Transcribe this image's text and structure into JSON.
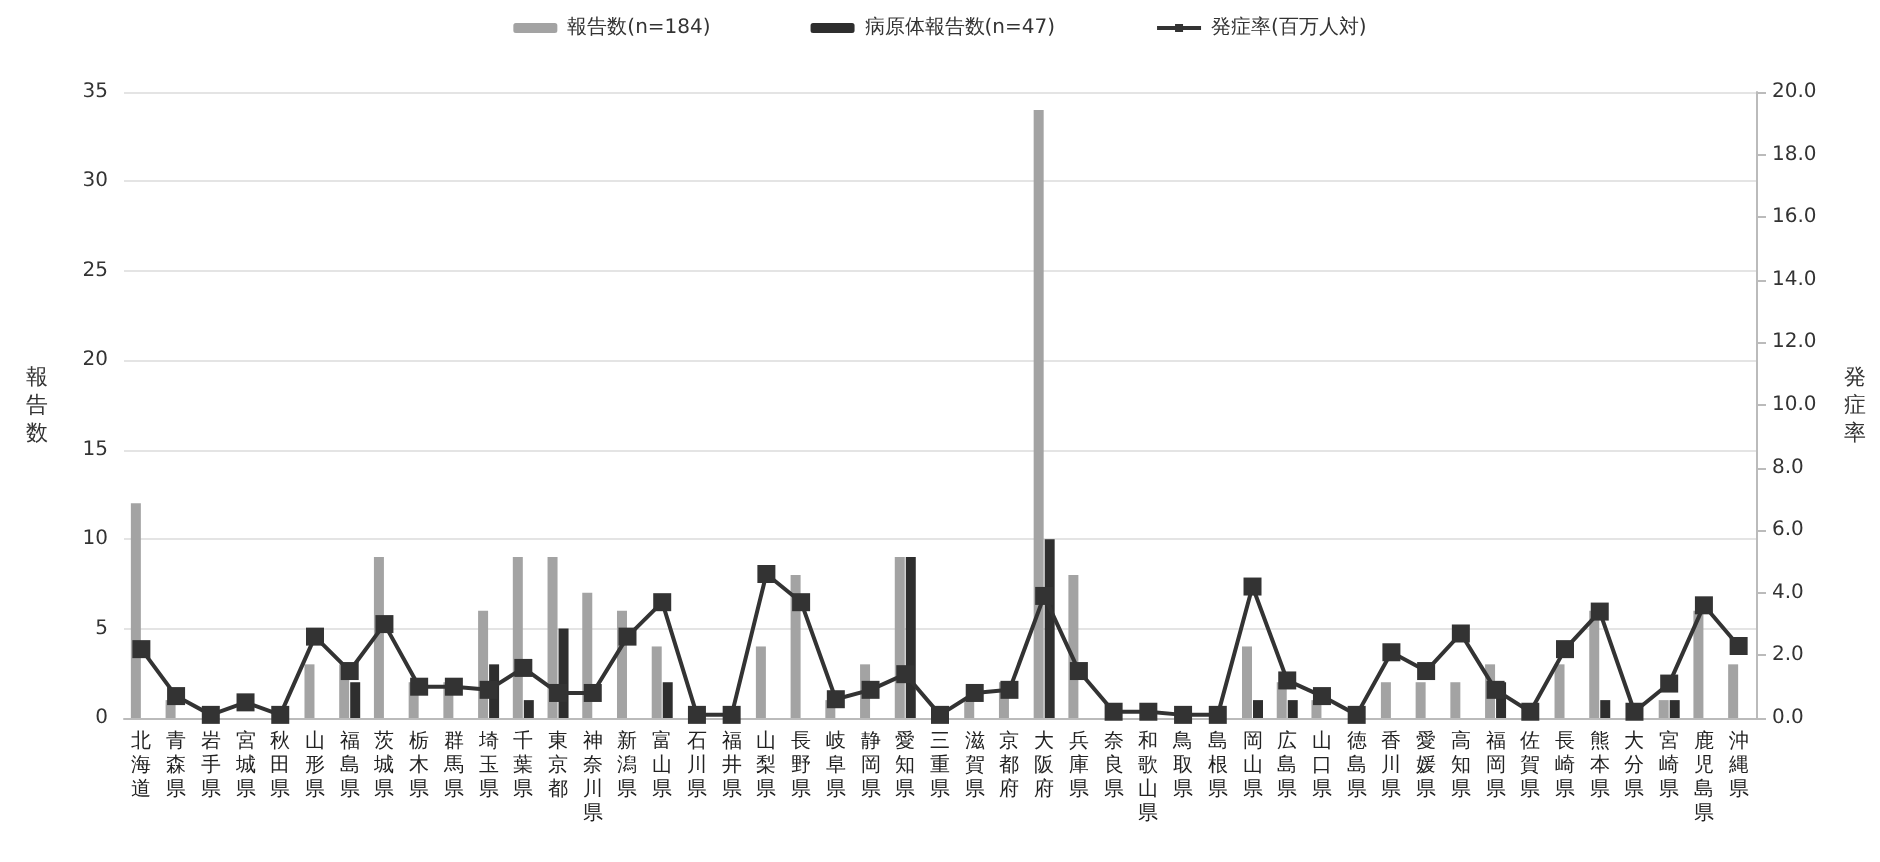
{
  "chart_data": {
    "type": "bar",
    "categories": [
      "北海道",
      "青森県",
      "岩手県",
      "宮城県",
      "秋田県",
      "山形県",
      "福島県",
      "茨城県",
      "栃木県",
      "群馬県",
      "埼玉県",
      "千葉県",
      "東京都",
      "神奈川県",
      "新潟県",
      "富山県",
      "石川県",
      "福井県",
      "山梨県",
      "長野県",
      "岐阜県",
      "静岡県",
      "愛知県",
      "三重県",
      "滋賀県",
      "京都府",
      "大阪府",
      "兵庫県",
      "奈良県",
      "和歌山県",
      "鳥取県",
      "島根県",
      "岡山県",
      "広島県",
      "山口県",
      "徳島県",
      "香川県",
      "愛媛県",
      "高知県",
      "福岡県",
      "佐賀県",
      "長崎県",
      "熊本県",
      "大分県",
      "宮崎県",
      "鹿児島県",
      "沖縄県"
    ],
    "series": [
      {
        "name": "報告数(n=184)",
        "color": "#a3a3a3",
        "values": [
          12,
          1,
          0,
          null,
          0,
          3,
          3,
          9,
          2,
          2,
          6,
          9,
          9,
          7,
          6,
          4,
          0,
          0,
          4,
          8,
          1,
          3,
          9,
          0,
          1,
          2,
          34,
          8,
          0,
          0,
          0,
          0,
          4,
          2,
          1,
          0,
          2,
          2,
          2,
          3,
          0,
          3,
          6,
          0,
          1,
          6,
          3
        ]
      },
      {
        "name": "病原体報告数(n=47)",
        "color": "#2e2e2e",
        "values": [
          0,
          0,
          0,
          0,
          0,
          0,
          2,
          0,
          0,
          0,
          3,
          1,
          5,
          0,
          0,
          2,
          0,
          0,
          0,
          0,
          0,
          0,
          9,
          0,
          0,
          0,
          10,
          0,
          0,
          0,
          0,
          0,
          1,
          1,
          0,
          0,
          0,
          0,
          0,
          2,
          0,
          0,
          1,
          0,
          1,
          0,
          0
        ]
      },
      {
        "name": "発症率(百万人対)",
        "type": "line",
        "axis": "y2",
        "color": "#333333",
        "values": [
          2.2,
          0.7,
          0.1,
          0.5,
          0.1,
          2.6,
          1.5,
          3.0,
          1.0,
          1.0,
          0.9,
          1.6,
          0.8,
          0.8,
          2.6,
          3.7,
          0.1,
          0.1,
          4.6,
          3.7,
          0.6,
          0.9,
          1.4,
          0.1,
          0.8,
          0.9,
          3.9,
          1.5,
          0.2,
          0.2,
          0.1,
          0.1,
          4.2,
          1.2,
          0.7,
          0.1,
          2.1,
          1.5,
          2.7,
          0.9,
          0.2,
          2.2,
          3.4,
          0.2,
          1.1,
          3.6,
          2.3
        ]
      }
    ],
    "ylabel": "報告数",
    "y2label": "発症率",
    "ylim": [
      0,
      35
    ],
    "yticks": [
      0,
      5,
      10,
      15,
      20,
      25,
      30,
      35
    ],
    "y2lim": [
      0,
      20
    ],
    "y2ticks": [
      {
        "value": 0,
        "label": "0.0"
      },
      {
        "value": 2,
        "label": "2.0"
      },
      {
        "value": 4,
        "label": "4.0"
      },
      {
        "value": 6,
        "label": "6.0"
      },
      {
        "value": 8,
        "label": "8.0"
      },
      {
        "value": 10,
        "label": "10.0"
      },
      {
        "value": 12,
        "label": "12.0"
      },
      {
        "value": 14,
        "label": "14.0"
      },
      {
        "value": 16,
        "label": "16.0"
      },
      {
        "value": 18,
        "label": "18.0"
      },
      {
        "value": 20,
        "label": "20.0"
      }
    ],
    "grid": "y",
    "legend": "top",
    "marker": "square",
    "line_style": "solid"
  }
}
